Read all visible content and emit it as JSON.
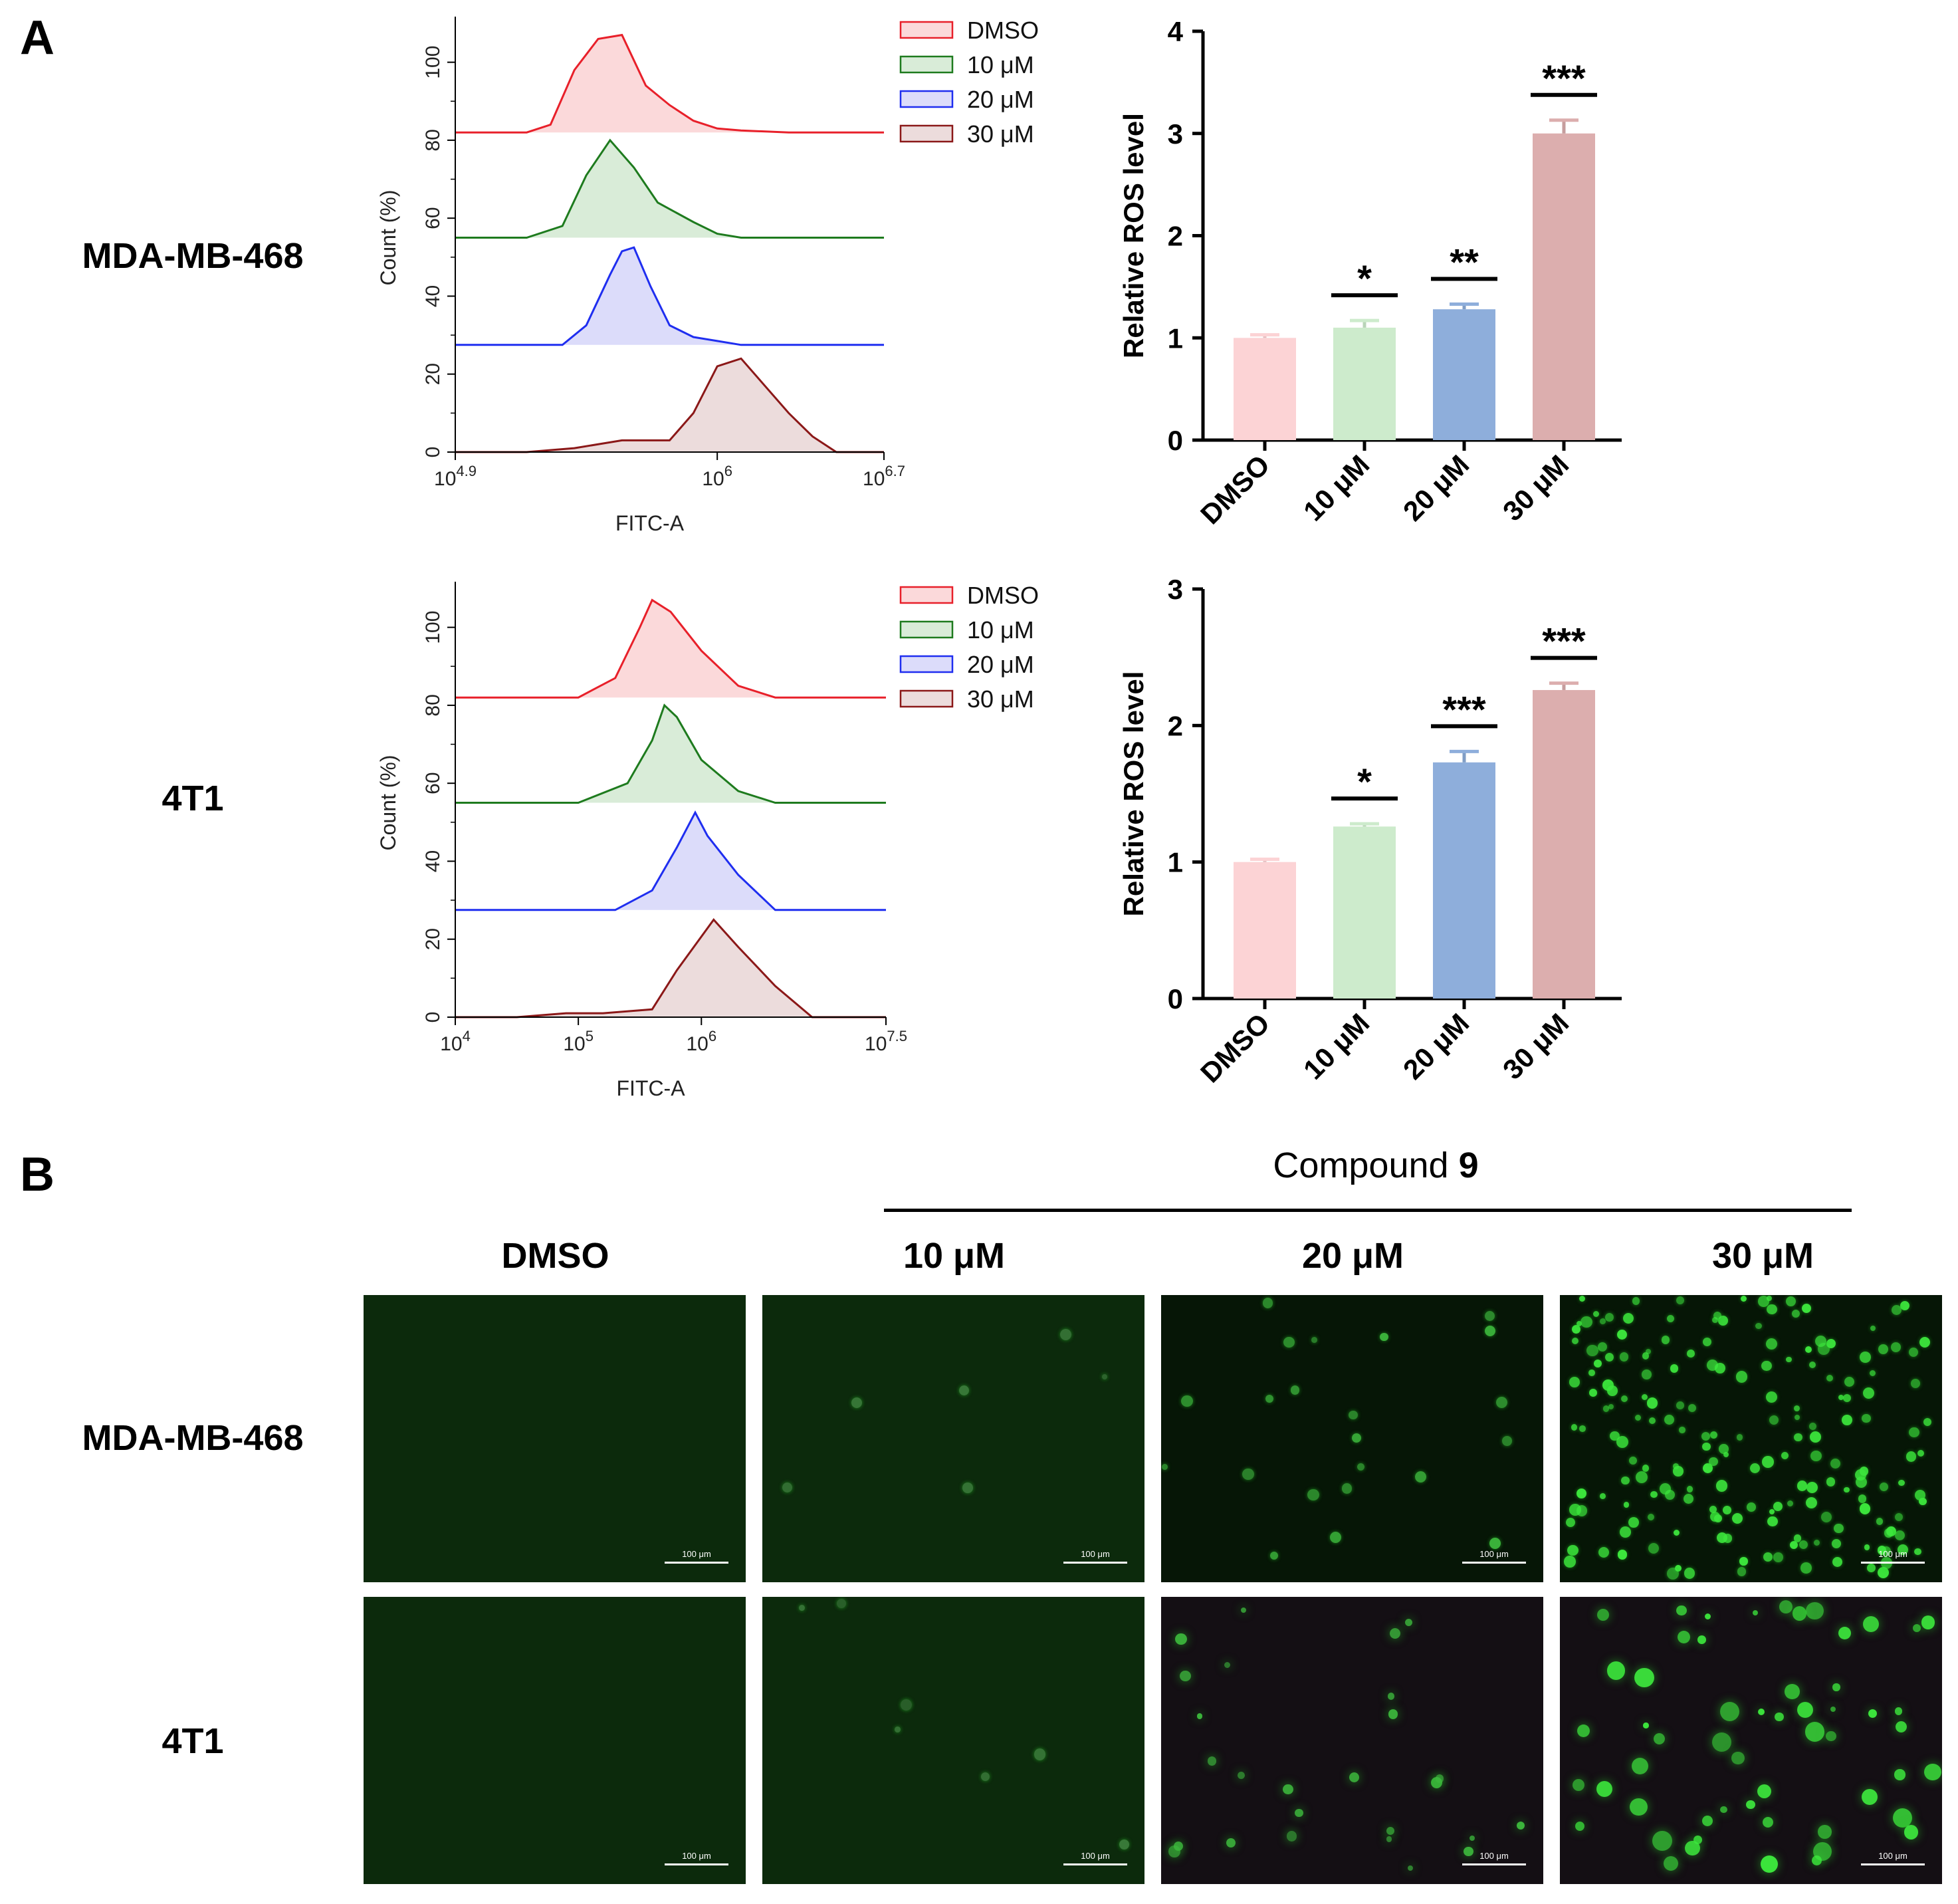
{
  "panel_a": {
    "letter": "A"
  },
  "panel_b": {
    "letter": "B"
  },
  "row_labels": [
    "MDA-MB-468",
    "4T1"
  ],
  "chart_data": [
    {
      "type": "area",
      "name": "flow-histogram-mda",
      "xlabel": "FITC-A",
      "ylabel": "Count (%)",
      "x_scale": "log10",
      "xlim": [
        4.9,
        6.7
      ],
      "x_ticks": [
        {
          "base": "10",
          "exp": "4.9",
          "v": 4.9
        },
        {
          "base": "10",
          "exp": "6",
          "v": 6
        },
        {
          "base": "10",
          "exp": "6.7",
          "v": 6.7
        }
      ],
      "ylim": [
        0,
        110
      ],
      "y_ticks": [
        "0",
        "20",
        "40",
        "60",
        "80",
        "100"
      ],
      "legend": [
        "DMSO",
        "10 μM",
        "20 μM",
        "30 μM"
      ],
      "series": [
        {
          "legend": "DMSO",
          "color": "#e8202a",
          "fill": "#fbd9da",
          "offset": 82,
          "x": [
            4.9,
            5.2,
            5.3,
            5.4,
            5.5,
            5.6,
            5.7,
            5.8,
            5.9,
            6.0,
            6.1,
            6.3,
            6.7
          ],
          "y": [
            0,
            0,
            2,
            16,
            24,
            25,
            12,
            7,
            3,
            1,
            0.5,
            0,
            0
          ]
        },
        {
          "legend": "10 μM",
          "color": "#1e7b1e",
          "fill": "#d9ecd8",
          "offset": 55,
          "x": [
            4.9,
            5.2,
            5.35,
            5.45,
            5.55,
            5.65,
            5.75,
            5.9,
            6.0,
            6.1,
            6.7
          ],
          "y": [
            0,
            0,
            3,
            16,
            25,
            18,
            9,
            4,
            1,
            0,
            0
          ]
        },
        {
          "legend": "20 μM",
          "color": "#1f2ef0",
          "fill": "#dcdcfa",
          "offset": 27.5,
          "x": [
            4.9,
            5.35,
            5.45,
            5.55,
            5.6,
            5.65,
            5.72,
            5.8,
            5.9,
            6.0,
            6.1,
            6.7
          ],
          "y": [
            0,
            0,
            5,
            18,
            24,
            25,
            15,
            5,
            2,
            1,
            0,
            0
          ]
        },
        {
          "legend": "30 μM",
          "color": "#8b1818",
          "fill": "#ecdcdc",
          "offset": 0,
          "x": [
            4.9,
            5.2,
            5.4,
            5.6,
            5.8,
            5.9,
            6.0,
            6.1,
            6.2,
            6.3,
            6.4,
            6.5,
            6.7
          ],
          "y": [
            0,
            0,
            1,
            3,
            3,
            10,
            22,
            24,
            17,
            10,
            4,
            0,
            0
          ]
        }
      ]
    },
    {
      "type": "bar",
      "name": "ros-bar-mda",
      "ylabel": "Relative ROS level",
      "ylim": [
        0,
        4
      ],
      "y_ticks": [
        0,
        1,
        2,
        3,
        4
      ],
      "categories": [
        "DMSO",
        "10 μM",
        "20 μM",
        "30 μM"
      ],
      "values": [
        1.0,
        1.1,
        1.28,
        3.0
      ],
      "errors": [
        0.03,
        0.07,
        0.05,
        0.13
      ],
      "colors": [
        "#fcd3d5",
        "#cdebcc",
        "#8eaedb",
        "#dcaeae"
      ],
      "significance": [
        "",
        "*",
        "**",
        "***"
      ]
    },
    {
      "type": "area",
      "name": "flow-histogram-4t1",
      "xlabel": "FITC-A",
      "ylabel": "Count (%)",
      "x_scale": "log10",
      "xlim": [
        4,
        7.5
      ],
      "x_ticks": [
        {
          "base": "10",
          "exp": "4",
          "v": 4
        },
        {
          "base": "10",
          "exp": "5",
          "v": 5
        },
        {
          "base": "10",
          "exp": "6",
          "v": 6
        },
        {
          "base": "10",
          "exp": "7.5",
          "v": 7.5
        }
      ],
      "ylim": [
        0,
        110
      ],
      "y_ticks": [
        "0",
        "20",
        "40",
        "60",
        "80",
        "100"
      ],
      "legend": [
        "DMSO",
        "10 μM",
        "20 μM",
        "30 μM"
      ],
      "series": [
        {
          "legend": "DMSO",
          "color": "#e8202a",
          "fill": "#fbd9da",
          "offset": 82,
          "x": [
            4.0,
            5.0,
            5.3,
            5.5,
            5.6,
            5.75,
            6.0,
            6.3,
            6.6,
            7.5
          ],
          "y": [
            0,
            0,
            5,
            18,
            25,
            22,
            12,
            3,
            0,
            0
          ]
        },
        {
          "legend": "10 μM",
          "color": "#1e7b1e",
          "fill": "#d9ecd8",
          "offset": 55,
          "x": [
            4.0,
            5.0,
            5.4,
            5.6,
            5.7,
            5.8,
            6.0,
            6.3,
            6.6,
            7.5
          ],
          "y": [
            0,
            0,
            5,
            16,
            25,
            22,
            11,
            3,
            0,
            0
          ]
        },
        {
          "legend": "20 μM",
          "color": "#1f2ef0",
          "fill": "#dcdcfa",
          "offset": 27.5,
          "x": [
            4.0,
            5.3,
            5.6,
            5.8,
            5.95,
            6.05,
            6.3,
            6.6,
            7.5
          ],
          "y": [
            0,
            0,
            5,
            16,
            25,
            19,
            9,
            0,
            0
          ]
        },
        {
          "legend": "30 μM",
          "color": "#8b1818",
          "fill": "#ecdcdc",
          "offset": 0,
          "x": [
            4.0,
            4.5,
            4.9,
            5.2,
            5.6,
            5.8,
            6.1,
            6.3,
            6.6,
            6.9,
            7.5
          ],
          "y": [
            0,
            0,
            1,
            1,
            2,
            12,
            25,
            18,
            8,
            0,
            0
          ]
        }
      ]
    },
    {
      "type": "bar",
      "name": "ros-bar-4t1",
      "ylabel": "Relative ROS level",
      "ylim": [
        0,
        3
      ],
      "y_ticks": [
        0,
        1,
        2,
        3
      ],
      "categories": [
        "DMSO",
        "10 μM",
        "20 μM",
        "30 μM"
      ],
      "values": [
        1.0,
        1.26,
        1.73,
        2.26
      ],
      "errors": [
        0.02,
        0.02,
        0.08,
        0.05
      ],
      "colors": [
        "#fcd3d5",
        "#cdebcc",
        "#8eaedb",
        "#dcaeae"
      ],
      "significance": [
        "",
        "*",
        "***",
        "***"
      ]
    }
  ],
  "compound_label": {
    "prefix": "Compound",
    "number": "9"
  },
  "microscopy_columns": [
    "DMSO",
    "10 μM",
    "20 μM",
    "30 μM"
  ],
  "microscopy_rows": [
    "MDA-MB-468",
    "4T1"
  ],
  "scale_bar": "100 μm"
}
